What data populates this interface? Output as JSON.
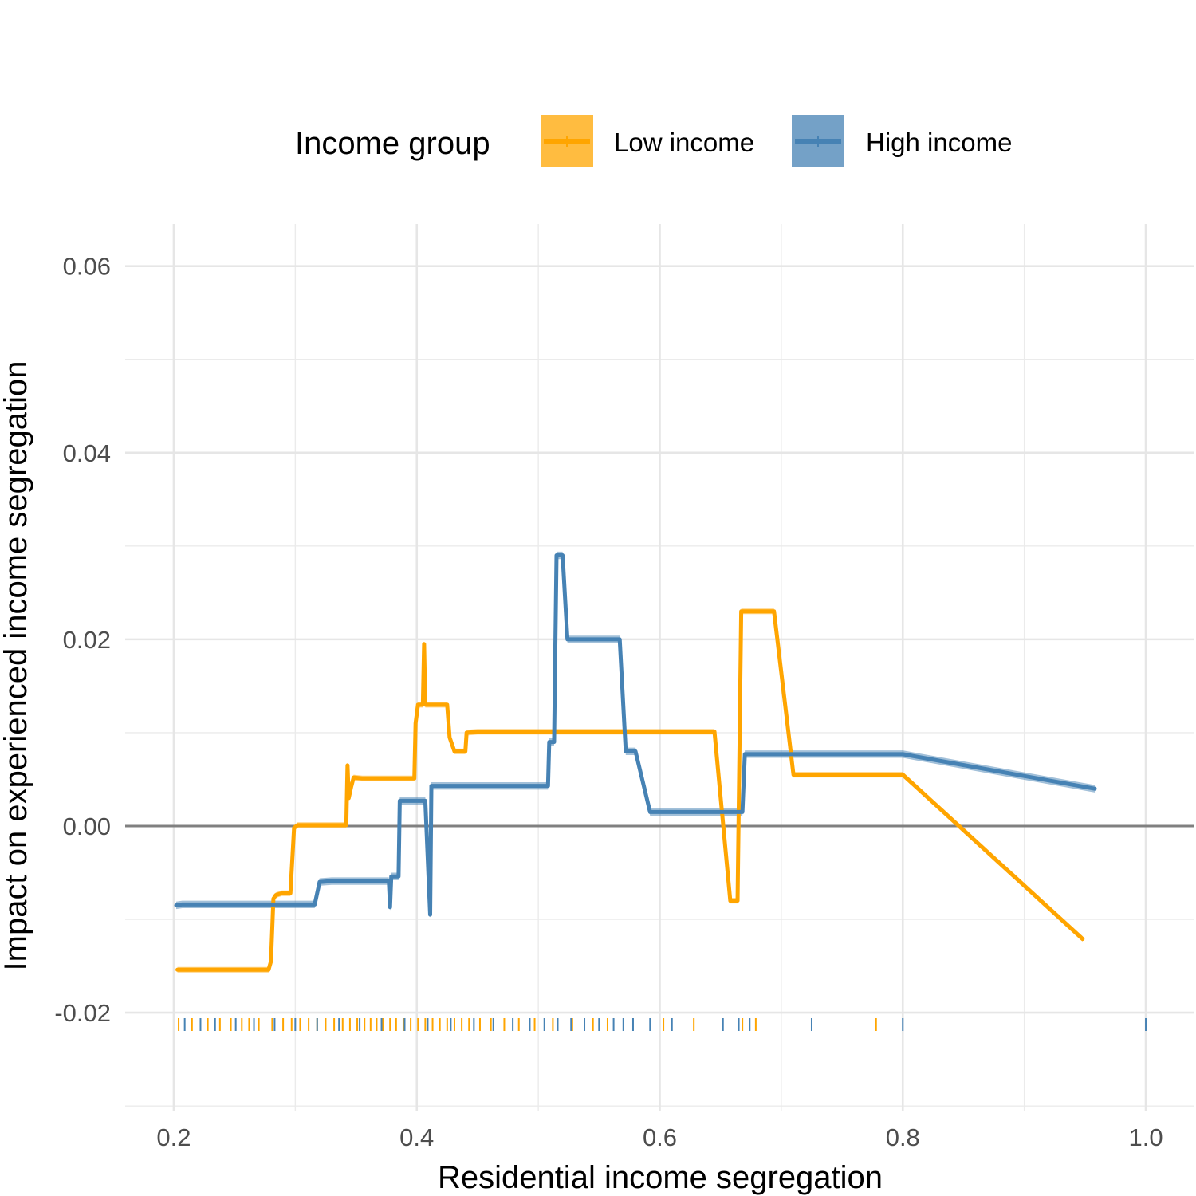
{
  "chart_data": {
    "type": "line",
    "xlabel": "Residential income segregation",
    "ylabel": "Impact on experienced income segregation",
    "xlim": [
      0.16,
      1.04
    ],
    "ylim": [
      -0.0305,
      0.0645
    ],
    "x_ticks": [
      0.2,
      0.4,
      0.6,
      0.8,
      1.0
    ],
    "x_tick_labels": [
      "0.2",
      "0.4",
      "0.6",
      "0.8",
      "1.0"
    ],
    "y_ticks": [
      -0.02,
      0.0,
      0.02,
      0.04,
      0.06
    ],
    "y_tick_labels": [
      "-0.02",
      "0.00",
      "0.02",
      "0.04",
      "0.06"
    ],
    "reference_line_y": 0.0,
    "grid": true,
    "legend": {
      "title": "Income group",
      "placement": "top",
      "entries": [
        "Low income",
        "High income"
      ]
    },
    "series": [
      {
        "name": "Low income",
        "color": "#FFA500",
        "band_halfwidth": 0.0003,
        "points": [
          [
            0.203,
            -0.0154
          ],
          [
            0.278,
            -0.0154
          ],
          [
            0.28,
            -0.0145
          ],
          [
            0.282,
            -0.0078
          ],
          [
            0.284,
            -0.0074
          ],
          [
            0.289,
            -0.0072
          ],
          [
            0.296,
            -0.0072
          ],
          [
            0.299,
            -0.0002
          ],
          [
            0.302,
            0.0001
          ],
          [
            0.342,
            0.0001
          ],
          [
            0.343,
            0.0065
          ],
          [
            0.344,
            0.003
          ],
          [
            0.346,
            0.0042
          ],
          [
            0.348,
            0.0052
          ],
          [
            0.355,
            0.0051
          ],
          [
            0.398,
            0.0051
          ],
          [
            0.399,
            0.011
          ],
          [
            0.401,
            0.013
          ],
          [
            0.405,
            0.013
          ],
          [
            0.406,
            0.0195
          ],
          [
            0.407,
            0.013
          ],
          [
            0.425,
            0.013
          ],
          [
            0.427,
            0.0095
          ],
          [
            0.431,
            0.008
          ],
          [
            0.44,
            0.008
          ],
          [
            0.441,
            0.01
          ],
          [
            0.45,
            0.0101
          ],
          [
            0.645,
            0.0101
          ],
          [
            0.658,
            -0.008
          ],
          [
            0.664,
            -0.008
          ],
          [
            0.667,
            0.023
          ],
          [
            0.694,
            0.023
          ],
          [
            0.71,
            0.0055
          ],
          [
            0.8,
            0.0055
          ],
          [
            0.948,
            -0.0121
          ]
        ],
        "rug": [
          0.204,
          0.215,
          0.228,
          0.238,
          0.247,
          0.256,
          0.262,
          0.27,
          0.281,
          0.29,
          0.297,
          0.304,
          0.311,
          0.318,
          0.325,
          0.332,
          0.339,
          0.345,
          0.351,
          0.357,
          0.362,
          0.367,
          0.372,
          0.378,
          0.383,
          0.389,
          0.395,
          0.401,
          0.407,
          0.413,
          0.419,
          0.425,
          0.431,
          0.437,
          0.443,
          0.452,
          0.461,
          0.472,
          0.484,
          0.497,
          0.512,
          0.528,
          0.545,
          0.557,
          0.603,
          0.628,
          0.668,
          0.679,
          0.778
        ]
      },
      {
        "name": "High income",
        "color": "#4682B4",
        "band_halfwidth": 0.0004,
        "points": [
          [
            0.202,
            -0.0085
          ],
          [
            0.207,
            -0.0084
          ],
          [
            0.316,
            -0.0084
          ],
          [
            0.32,
            -0.006
          ],
          [
            0.33,
            -0.0059
          ],
          [
            0.377,
            -0.0059
          ],
          [
            0.378,
            -0.0087
          ],
          [
            0.379,
            -0.0054
          ],
          [
            0.385,
            -0.0054
          ],
          [
            0.386,
            0.0027
          ],
          [
            0.407,
            0.0027
          ],
          [
            0.411,
            -0.0095
          ],
          [
            0.412,
            0.0043
          ],
          [
            0.508,
            0.0043
          ],
          [
            0.509,
            0.009
          ],
          [
            0.513,
            0.009
          ],
          [
            0.515,
            0.029
          ],
          [
            0.52,
            0.029
          ],
          [
            0.524,
            0.02
          ],
          [
            0.567,
            0.02
          ],
          [
            0.572,
            0.008
          ],
          [
            0.58,
            0.008
          ],
          [
            0.592,
            0.0015
          ],
          [
            0.668,
            0.0015
          ],
          [
            0.67,
            0.0077
          ],
          [
            0.8,
            0.0077
          ],
          [
            0.958,
            0.004
          ]
        ],
        "rug": [
          0.209,
          0.222,
          0.234,
          0.251,
          0.266,
          0.283,
          0.3,
          0.318,
          0.336,
          0.353,
          0.371,
          0.39,
          0.409,
          0.428,
          0.447,
          0.463,
          0.479,
          0.493,
          0.505,
          0.516,
          0.527,
          0.538,
          0.55,
          0.562,
          0.57,
          0.578,
          0.592,
          0.61,
          0.652,
          0.665,
          0.674,
          0.725,
          0.8,
          1.0
        ]
      }
    ]
  }
}
